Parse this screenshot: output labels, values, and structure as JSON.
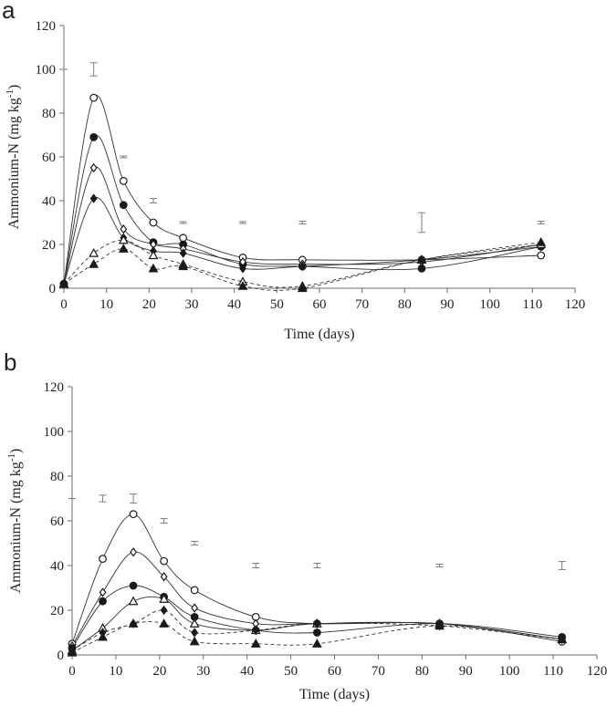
{
  "chart_data": [
    {
      "panel": "a",
      "type": "line",
      "xlabel": "Time (days)",
      "ylabel": "Ammonium-N (mg kg",
      "ylabel_sup": "-1",
      "ylabel_end": ")",
      "xlim": [
        0,
        120
      ],
      "ylim": [
        0,
        120
      ],
      "xticks": [
        0,
        10,
        20,
        30,
        40,
        50,
        60,
        70,
        80,
        90,
        100,
        110,
        120
      ],
      "yticks": [
        0,
        20,
        40,
        60,
        80,
        100,
        120
      ],
      "grid": false,
      "series": [
        {
          "marker": "open-circle",
          "dashed": false,
          "x": [
            0,
            7,
            14,
            21,
            28,
            42,
            56,
            84,
            112
          ],
          "y": [
            2,
            87,
            49,
            30,
            23,
            14,
            13,
            13,
            15
          ]
        },
        {
          "marker": "filled-circle",
          "dashed": false,
          "x": [
            0,
            7,
            14,
            21,
            28,
            42,
            56,
            84,
            112
          ],
          "y": [
            2,
            69,
            38,
            21,
            20,
            11,
            10,
            9,
            19
          ]
        },
        {
          "marker": "open-diamond",
          "dashed": false,
          "x": [
            0,
            7,
            14,
            21,
            28,
            42,
            56,
            84,
            112
          ],
          "y": [
            2,
            55,
            27,
            20,
            18,
            12,
            11,
            12,
            20
          ]
        },
        {
          "marker": "filled-diamond",
          "dashed": false,
          "x": [
            0,
            7,
            14,
            21,
            28,
            42,
            56,
            84,
            112
          ],
          "y": [
            2,
            41,
            23,
            17,
            16,
            9,
            10,
            13,
            19
          ]
        },
        {
          "marker": "open-triangle",
          "dashed": true,
          "x": [
            0,
            7,
            14,
            21,
            28,
            42,
            56,
            84,
            112
          ],
          "y": [
            2,
            16,
            22,
            15,
            11,
            3,
            1,
            13,
            20
          ]
        },
        {
          "marker": "filled-triangle",
          "dashed": true,
          "x": [
            0,
            7,
            14,
            21,
            28,
            42,
            56,
            84,
            112
          ],
          "y": [
            2,
            11,
            18,
            9,
            10,
            1,
            0,
            13,
            21
          ]
        }
      ],
      "error_bars": {
        "x": [
          0,
          7,
          14,
          21,
          28,
          42,
          56,
          84,
          112
        ],
        "y": [
          100,
          100,
          60,
          40,
          30,
          30,
          30,
          30,
          30
        ],
        "half": [
          0,
          3,
          0.4,
          1,
          0.4,
          0.4,
          0.6,
          4.5,
          0.6
        ]
      }
    },
    {
      "panel": "b",
      "type": "line",
      "xlabel": "Time (days)",
      "ylabel": "Ammonium-N (mg kg",
      "ylabel_sup": "-1",
      "ylabel_end": ")",
      "xlim": [
        0,
        120
      ],
      "ylim": [
        0,
        120
      ],
      "xticks": [
        0,
        10,
        20,
        30,
        40,
        50,
        60,
        70,
        80,
        90,
        100,
        110,
        120
      ],
      "yticks": [
        0,
        20,
        40,
        60,
        80,
        100,
        120
      ],
      "grid": false,
      "series": [
        {
          "marker": "open-circle",
          "dashed": false,
          "x": [
            0,
            7,
            14,
            21,
            28,
            42,
            56,
            84,
            112
          ],
          "y": [
            5,
            43,
            63,
            42,
            29,
            17,
            14,
            14,
            6
          ]
        },
        {
          "marker": "open-diamond",
          "dashed": false,
          "x": [
            0,
            7,
            14,
            21,
            28,
            42,
            56,
            84,
            112
          ],
          "y": [
            4,
            28,
            46,
            35,
            21,
            14,
            14,
            14,
            7
          ]
        },
        {
          "marker": "filled-circle",
          "dashed": false,
          "x": [
            0,
            7,
            14,
            21,
            28,
            42,
            56,
            84,
            112
          ],
          "y": [
            3,
            24,
            31,
            26,
            17,
            11,
            10,
            14,
            8
          ]
        },
        {
          "marker": "open-triangle",
          "dashed": false,
          "x": [
            0,
            7,
            14,
            21,
            28,
            42,
            56,
            84,
            112
          ],
          "y": [
            2,
            12,
            24,
            25,
            14,
            11,
            14,
            14,
            7
          ]
        },
        {
          "marker": "filled-diamond",
          "dashed": true,
          "x": [
            0,
            7,
            14,
            21,
            28,
            42,
            56,
            84,
            112
          ],
          "y": [
            2,
            10,
            14,
            20,
            10,
            11,
            14,
            13,
            7
          ]
        },
        {
          "marker": "filled-triangle",
          "dashed": true,
          "x": [
            0,
            7,
            14,
            21,
            28,
            42,
            56,
            84,
            112
          ],
          "y": [
            1,
            8,
            14,
            14,
            6,
            5,
            5,
            13,
            7
          ]
        }
      ],
      "error_bars": {
        "x": [
          0,
          7,
          14,
          21,
          28,
          42,
          56,
          84,
          112
        ],
        "y": [
          70,
          70,
          70,
          60,
          50,
          40,
          40,
          40,
          40
        ],
        "half": [
          0,
          1.5,
          2,
          1,
          0.8,
          1,
          1,
          0.6,
          1.8
        ]
      }
    }
  ]
}
